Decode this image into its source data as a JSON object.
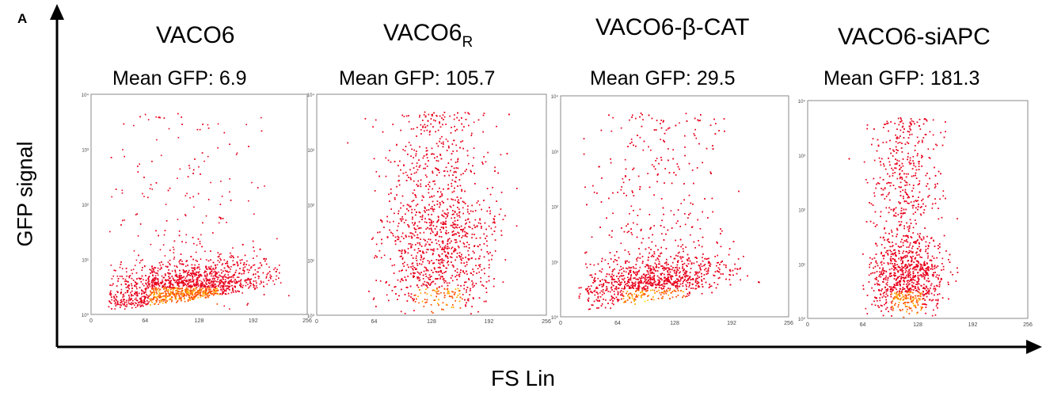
{
  "panel_letter": "A",
  "axis": {
    "y_label": "GFP signal",
    "x_label": "FS Lin"
  },
  "mean_label": "Mean GFP:",
  "colors": {
    "low": "#e8001c",
    "mid": "#ff4d00",
    "high": "#ffb000",
    "peak": "#e0f000",
    "axis": "#000000"
  },
  "chart_data": [
    {
      "type": "scatter",
      "title": "VACO6",
      "title_sub": "",
      "mean_gfp": "6.9",
      "x_ticks": [
        "0",
        "64",
        "128",
        "192",
        "256"
      ],
      "y_ticks": [
        "10⁰",
        "10¹",
        "10²",
        "10³",
        "10⁴"
      ],
      "xlim": [
        0,
        256
      ],
      "ylim_log10": [
        0,
        4
      ],
      "yscale": "log",
      "density": {
        "x_center": 110,
        "x_spread": 70,
        "y_base_log10": 0.1,
        "y_slope": 0.0022,
        "tail_fraction": 0.1
      }
    },
    {
      "type": "scatter",
      "title": "VACO6",
      "title_sub": "R",
      "mean_gfp": "105.7",
      "x_ticks": [
        "0",
        "64",
        "128",
        "192",
        "256"
      ],
      "y_ticks": [
        "10⁰",
        "10¹",
        "10²",
        "10³",
        "10⁴"
      ],
      "xlim": [
        0,
        256
      ],
      "ylim_log10": [
        0,
        4
      ],
      "yscale": "log",
      "density": {
        "x_center": 135,
        "x_spread": 45,
        "y_base_log10": 1.6,
        "y_slope": 0.0,
        "tail_fraction": 0.35
      }
    },
    {
      "type": "scatter",
      "title": "VACO6-β-CAT",
      "title_sub": "",
      "mean_gfp": "29.5",
      "x_ticks": [
        "0",
        "64",
        "128",
        "192",
        "256"
      ],
      "y_ticks": [
        "10⁰",
        "10¹",
        "10²",
        "10³",
        "10⁴"
      ],
      "xlim": [
        0,
        256
      ],
      "ylim_log10": [
        0,
        4
      ],
      "yscale": "log",
      "density": {
        "x_center": 105,
        "x_spread": 60,
        "y_base_log10": 0.35,
        "y_slope": 0.0025,
        "tail_fraction": 0.25
      }
    },
    {
      "type": "scatter",
      "title": "VACO6-siAPC",
      "title_sub": "",
      "mean_gfp": "181.3",
      "x_ticks": [
        "0",
        "64",
        "128",
        "192",
        "256"
      ],
      "y_ticks": [
        "10⁰",
        "10¹",
        "10²",
        "10³",
        "10⁴"
      ],
      "xlim": [
        0,
        256
      ],
      "ylim_log10": [
        0,
        4
      ],
      "yscale": "log",
      "density": {
        "x_center": 115,
        "x_spread": 30,
        "y_base_log10": 0.9,
        "y_slope": 0.0,
        "tail_fraction": 0.4
      }
    }
  ]
}
